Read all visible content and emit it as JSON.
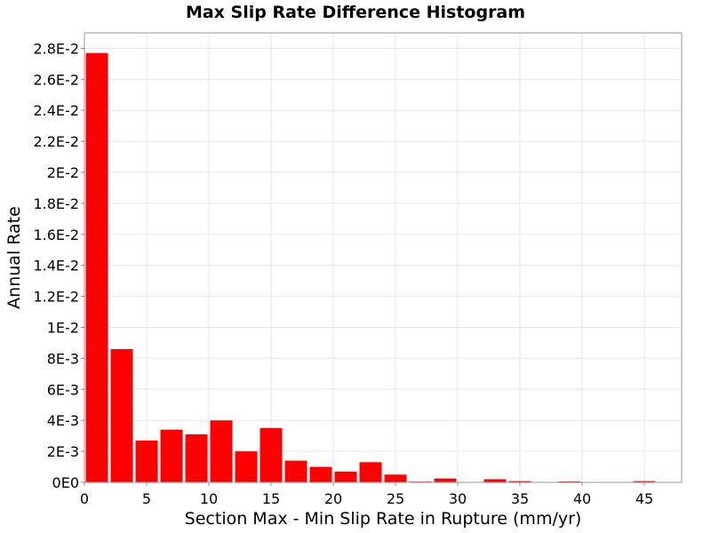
{
  "chart_data": {
    "type": "bar",
    "title": "Max Slip Rate Difference Histogram",
    "xlabel": "Section Max - Min Slip Rate in Rupture (mm/yr)",
    "ylabel": "Annual Rate",
    "xlim": [
      0,
      48
    ],
    "ylim": [
      0,
      0.029
    ],
    "bin_width": 2,
    "x_ticks": [
      0,
      5,
      10,
      15,
      20,
      25,
      30,
      35,
      40,
      45
    ],
    "x_tick_labels": [
      "0",
      "5",
      "10",
      "15",
      "20",
      "25",
      "30",
      "35",
      "40",
      "45"
    ],
    "y_ticks": [
      0,
      0.002,
      0.004,
      0.006,
      0.008,
      0.01,
      0.012,
      0.014,
      0.016,
      0.018,
      0.02,
      0.022,
      0.024,
      0.026,
      0.028
    ],
    "y_tick_labels": [
      "0E0",
      "2E-3",
      "4E-3",
      "6E-3",
      "8E-3",
      "1E-2",
      "1.2E-2",
      "1.4E-2",
      "1.6E-2",
      "1.8E-2",
      "2E-2",
      "2.2E-2",
      "2.4E-2",
      "2.6E-2",
      "2.8E-2"
    ],
    "grid": true,
    "bar_color": "#ff0000",
    "x": [
      1,
      3,
      5,
      7,
      9,
      11,
      13,
      15,
      17,
      19,
      21,
      23,
      25,
      27,
      29,
      31,
      33,
      35,
      37,
      39,
      41,
      43,
      45,
      47
    ],
    "values": [
      0.0277,
      0.0086,
      0.0027,
      0.0034,
      0.0031,
      0.004,
      0.002,
      0.0035,
      0.0014,
      0.001,
      0.0007,
      0.0013,
      0.0005,
      5e-05,
      0.00025,
      3e-05,
      0.0002,
      8e-05,
      3e-05,
      6e-05,
      2e-05,
      3e-05,
      8e-05,
      0.0
    ]
  }
}
